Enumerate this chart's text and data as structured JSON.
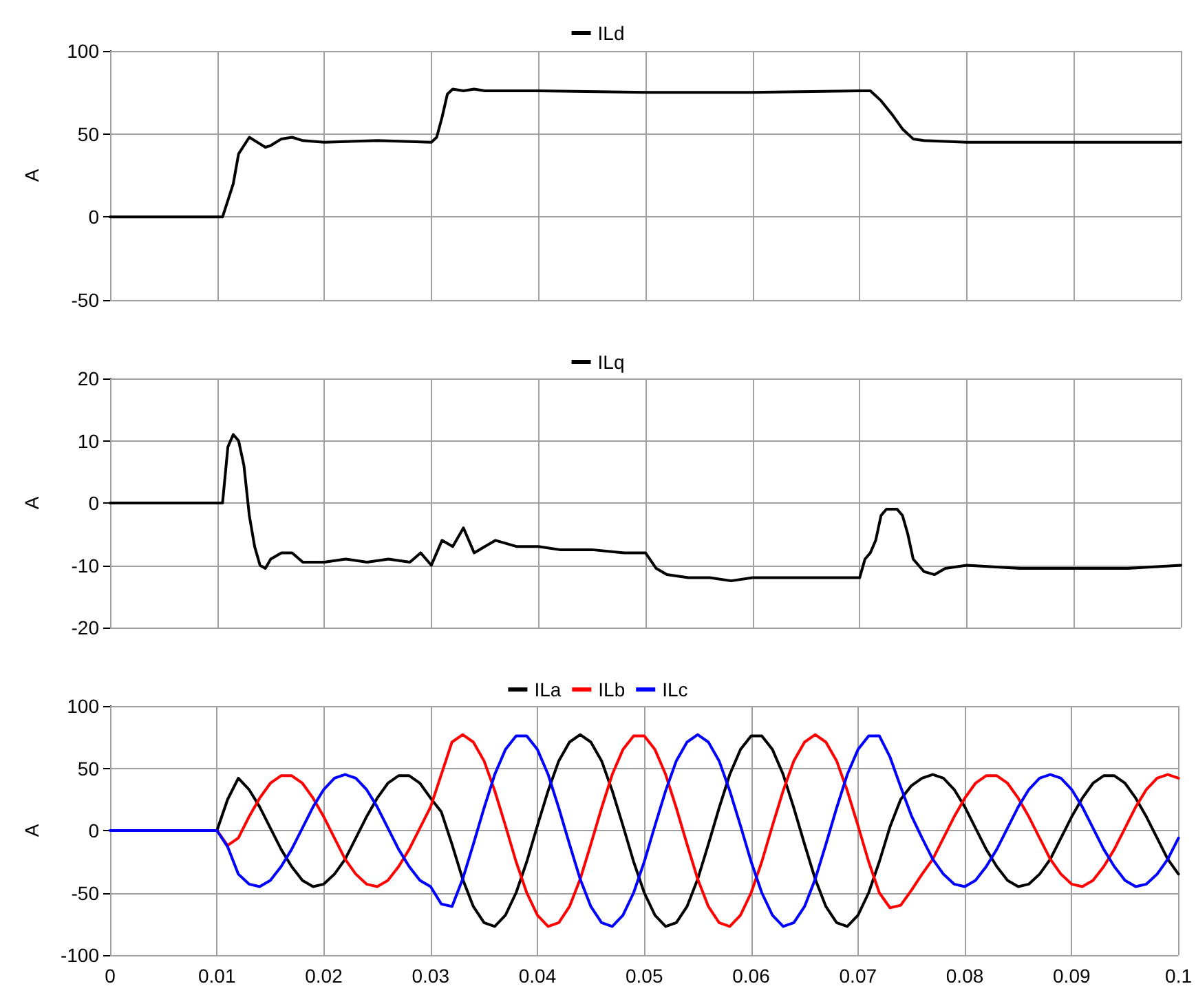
{
  "chart_data": [
    {
      "type": "line",
      "ylabel": "A",
      "xlim": [
        0,
        0.1
      ],
      "xticks": [
        0,
        0.01,
        0.02,
        0.03,
        0.04,
        0.05,
        0.06,
        0.07,
        0.08,
        0.09,
        0.1
      ],
      "ylim": [
        -50,
        100
      ],
      "yticks": [
        -50,
        0,
        50,
        100
      ],
      "grid": true,
      "legend": "top",
      "tick_labels": "y",
      "series": [
        {
          "name": "ILd",
          "color": "#000000",
          "x": [
            0,
            0.0105,
            0.0115,
            0.012,
            0.013,
            0.014,
            0.0145,
            0.015,
            0.016,
            0.017,
            0.018,
            0.02,
            0.025,
            0.03,
            0.0305,
            0.031,
            0.0315,
            0.032,
            0.033,
            0.034,
            0.035,
            0.04,
            0.05,
            0.06,
            0.07,
            0.071,
            0.072,
            0.073,
            0.074,
            0.075,
            0.076,
            0.08,
            0.09,
            0.1
          ],
          "values": [
            0,
            0,
            20,
            38,
            48,
            44,
            42,
            43,
            47,
            48,
            46,
            45,
            46,
            45,
            48,
            60,
            74,
            77,
            76,
            77,
            76,
            76,
            75,
            75,
            76,
            76,
            70,
            62,
            53,
            47,
            46,
            45,
            45,
            45
          ]
        }
      ]
    },
    {
      "type": "line",
      "ylabel": "A",
      "xlim": [
        0,
        0.1
      ],
      "xticks": [
        0,
        0.01,
        0.02,
        0.03,
        0.04,
        0.05,
        0.06,
        0.07,
        0.08,
        0.09,
        0.1
      ],
      "ylim": [
        -20,
        20
      ],
      "yticks": [
        -20,
        -10,
        0,
        10,
        20
      ],
      "grid": true,
      "legend": "top",
      "tick_labels": "y",
      "series": [
        {
          "name": "ILq",
          "color": "#000000",
          "x": [
            0,
            0.0105,
            0.011,
            0.0115,
            0.012,
            0.0125,
            0.013,
            0.0135,
            0.014,
            0.0145,
            0.015,
            0.016,
            0.017,
            0.018,
            0.02,
            0.022,
            0.024,
            0.026,
            0.028,
            0.029,
            0.03,
            0.0305,
            0.031,
            0.032,
            0.033,
            0.034,
            0.035,
            0.036,
            0.038,
            0.04,
            0.042,
            0.045,
            0.048,
            0.05,
            0.051,
            0.052,
            0.054,
            0.056,
            0.058,
            0.06,
            0.065,
            0.07,
            0.0705,
            0.071,
            0.0715,
            0.072,
            0.0725,
            0.0735,
            0.074,
            0.0745,
            0.075,
            0.076,
            0.077,
            0.078,
            0.08,
            0.085,
            0.09,
            0.095,
            0.1
          ],
          "values": [
            0,
            0,
            9,
            11,
            10,
            6,
            -2,
            -7,
            -10,
            -10.5,
            -9,
            -8,
            -8,
            -9.5,
            -9.5,
            -9,
            -9.5,
            -9,
            -9.5,
            -8,
            -10,
            -8,
            -6,
            -7,
            -4,
            -8,
            -7,
            -6,
            -7,
            -7,
            -7.5,
            -7.5,
            -8,
            -8,
            -10.5,
            -11.5,
            -12,
            -12,
            -12.5,
            -12,
            -12,
            -12,
            -9,
            -8,
            -6,
            -2,
            -1,
            -1,
            -2,
            -5,
            -9,
            -11,
            -11.5,
            -10.5,
            -10,
            -10.5,
            -10.5,
            -10.5,
            -10
          ]
        }
      ]
    },
    {
      "type": "line",
      "ylabel": "A",
      "xlim": [
        0,
        0.1
      ],
      "xticks": [
        0,
        0.01,
        0.02,
        0.03,
        0.04,
        0.05,
        0.06,
        0.07,
        0.08,
        0.09,
        0.1
      ],
      "ylim": [
        -100,
        100
      ],
      "yticks": [
        -100,
        -50,
        0,
        50,
        100
      ],
      "grid": true,
      "legend": "top",
      "x": [
        0,
        0.001,
        0.002,
        0.003,
        0.004,
        0.005,
        0.006,
        0.007,
        0.008,
        0.009,
        0.01,
        0.011,
        0.012,
        0.013,
        0.014,
        0.015,
        0.016,
        0.017,
        0.018,
        0.019,
        0.02,
        0.021,
        0.022,
        0.023,
        0.024,
        0.025,
        0.026,
        0.027,
        0.028,
        0.029,
        0.03,
        0.031,
        0.032,
        0.033,
        0.034,
        0.035,
        0.036,
        0.037,
        0.038,
        0.039,
        0.04,
        0.041,
        0.042,
        0.043,
        0.044,
        0.045,
        0.046,
        0.047,
        0.048,
        0.049,
        0.05,
        0.051,
        0.052,
        0.053,
        0.054,
        0.055,
        0.056,
        0.057,
        0.058,
        0.059,
        0.06,
        0.061,
        0.062,
        0.063,
        0.064,
        0.065,
        0.066,
        0.067,
        0.068,
        0.069,
        0.07,
        0.071,
        0.072,
        0.073,
        0.074,
        0.075,
        0.076,
        0.077,
        0.078,
        0.079,
        0.08,
        0.081,
        0.082,
        0.083,
        0.084,
        0.085,
        0.086,
        0.087,
        0.088,
        0.089,
        0.09,
        0.091,
        0.092,
        0.093,
        0.094,
        0.095,
        0.096,
        0.097,
        0.098,
        0.099,
        0.1
      ],
      "series": [
        {
          "name": "ILa",
          "color": "#000000",
          "values": [
            null,
            null,
            null,
            null,
            null,
            null,
            null,
            null,
            null,
            null,
            0,
            25,
            42,
            33,
            19,
            2,
            -15,
            -29,
            -40,
            -45,
            -43,
            -35,
            -23,
            -6,
            11,
            26,
            38,
            44,
            44,
            38,
            26,
            15,
            -11,
            -39,
            -61,
            -74,
            -77,
            -68,
            -50,
            -25,
            4,
            32,
            56,
            71,
            77,
            71,
            56,
            32,
            4,
            -25,
            -50,
            -68,
            -77,
            -74,
            -61,
            -39,
            -11,
            18,
            45,
            65,
            76,
            76,
            65,
            45,
            18,
            -11,
            -39,
            -61,
            -74,
            -77,
            -68,
            -50,
            -25,
            3,
            25,
            36,
            42,
            45,
            42,
            33,
            19,
            2,
            -15,
            -29,
            -40,
            -45,
            -43,
            -35,
            -23,
            -6,
            11,
            26,
            38,
            44,
            44,
            38,
            26,
            11,
            -6,
            -23,
            -35
          ]
        },
        {
          "name": "ILb",
          "color": "#ff0000",
          "values": [
            null,
            null,
            null,
            null,
            null,
            null,
            null,
            null,
            null,
            null,
            0,
            -12,
            -6,
            11,
            26,
            38,
            44,
            44,
            38,
            26,
            11,
            -6,
            -23,
            -35,
            -43,
            -45,
            -40,
            -29,
            -15,
            2,
            19,
            45,
            71,
            77,
            71,
            56,
            32,
            4,
            -25,
            -50,
            -68,
            -77,
            -74,
            -61,
            -39,
            -11,
            18,
            45,
            65,
            76,
            76,
            65,
            45,
            18,
            -11,
            -39,
            -61,
            -74,
            -77,
            -68,
            -50,
            -25,
            4,
            32,
            56,
            71,
            77,
            71,
            56,
            32,
            4,
            -25,
            -50,
            -62,
            -60,
            -48,
            -35,
            -23,
            -6,
            11,
            26,
            38,
            44,
            44,
            38,
            26,
            11,
            -6,
            -23,
            -35,
            -43,
            -45,
            -40,
            -29,
            -15,
            2,
            19,
            33,
            42,
            45,
            42
          ]
        },
        {
          "name": "ILc",
          "color": "#0000ff",
          "values": [
            0,
            0,
            0,
            0,
            0,
            0,
            0,
            0,
            0,
            0,
            0,
            -13,
            -35,
            -43,
            -45,
            -40,
            -29,
            -15,
            2,
            19,
            33,
            42,
            45,
            42,
            33,
            19,
            2,
            -15,
            -29,
            -40,
            -45,
            -59,
            -61,
            -39,
            -11,
            18,
            45,
            65,
            76,
            76,
            65,
            45,
            18,
            -11,
            -39,
            -61,
            -74,
            -77,
            -68,
            -50,
            -25,
            4,
            32,
            56,
            71,
            77,
            71,
            56,
            32,
            4,
            -25,
            -50,
            -68,
            -77,
            -74,
            -61,
            -39,
            -11,
            18,
            45,
            65,
            76,
            76,
            59,
            35,
            12,
            -6,
            -23,
            -35,
            -43,
            -45,
            -40,
            -29,
            -15,
            2,
            19,
            33,
            42,
            45,
            42,
            33,
            19,
            2,
            -15,
            -29,
            -40,
            -45,
            -43,
            -35,
            -23,
            -6
          ]
        }
      ]
    }
  ]
}
